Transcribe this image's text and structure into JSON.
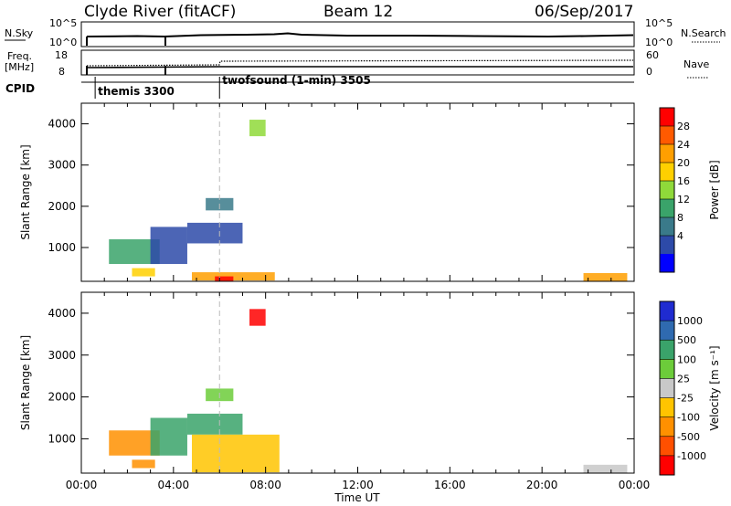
{
  "header": {
    "title": "Clyde River (fitACF)",
    "beam": "Beam 12",
    "date": "06/Sep/2017"
  },
  "status_panels": {
    "nsky_label": "N.Sky",
    "nsky_ticks": [
      "10^5",
      "10^0"
    ],
    "nsearch_label": "N.Search",
    "nsearch_ticks": [
      "10^5",
      "10^0"
    ],
    "freq_label": "Freq.",
    "freq_unit": "[MHz]",
    "freq_ticks": [
      "18",
      "8"
    ],
    "nave_label": "Nave",
    "nave_ticks": [
      "60",
      "0"
    ],
    "cpid_label": "CPID",
    "cpid_programs": [
      {
        "name": "themis 3300",
        "start_hour": 0.6
      },
      {
        "name": "twofsound (1-min) 3505",
        "start_hour": 6.0
      }
    ]
  },
  "colorbars": {
    "power": {
      "title": "Power [dB]",
      "ticks": [
        "28",
        "24",
        "20",
        "16",
        "12",
        "8",
        "4"
      ],
      "colors": [
        "#ff0000",
        "#ff5a00",
        "#ff9f00",
        "#ffd000",
        "#8fd93a",
        "#3aa36a",
        "#3a7a8a",
        "#2d4aa8",
        "#0000ff"
      ]
    },
    "velocity": {
      "title": "Velocity [m s⁻¹]",
      "ticks": [
        "1000",
        "500",
        "100",
        "25",
        "-25",
        "-100",
        "-500",
        "-1000"
      ],
      "colors": [
        "#1f2bd0",
        "#2f6ab0",
        "#3aa36a",
        "#6ccc3a",
        "#c8c8c8",
        "#ffc400",
        "#ff9000",
        "#ff5000",
        "#ff0000"
      ]
    }
  },
  "x_axis": {
    "label": "Time UT",
    "ticks": [
      "00:00",
      "04:00",
      "08:00",
      "12:00",
      "16:00",
      "20:00",
      "00:00"
    ]
  },
  "chart_data": [
    {
      "type": "heatmap",
      "panel": "power",
      "ylabel": "Slant Range [km]",
      "xlabel": "",
      "xlim_hours": [
        0,
        24
      ],
      "ylim_km": [
        180,
        4500
      ],
      "yticks": [
        "4000",
        "3000",
        "2000",
        "1000"
      ],
      "colorbar": "Power [dB]",
      "regions": [
        {
          "t0": 1.2,
          "t1": 3.4,
          "r0": 600,
          "r1": 1200,
          "level": 5
        },
        {
          "t0": 3.0,
          "t1": 4.6,
          "r0": 600,
          "r1": 1500,
          "level": 7
        },
        {
          "t0": 4.6,
          "t1": 7.0,
          "r0": 1100,
          "r1": 1600,
          "level": 7
        },
        {
          "t0": 5.4,
          "t1": 6.6,
          "r0": 1900,
          "r1": 2200,
          "level": 6
        },
        {
          "t0": 2.2,
          "t1": 3.2,
          "r0": 300,
          "r1": 500,
          "level": 3
        },
        {
          "t0": 4.8,
          "t1": 8.4,
          "r0": 200,
          "r1": 400,
          "level": 2
        },
        {
          "t0": 5.8,
          "t1": 6.6,
          "r0": 180,
          "r1": 300,
          "level": 0
        },
        {
          "t0": 7.3,
          "t1": 8.0,
          "r0": 3700,
          "r1": 4100,
          "level": 4
        },
        {
          "t0": 21.8,
          "t1": 23.7,
          "r0": 180,
          "r1": 380,
          "level": 2
        }
      ]
    },
    {
      "type": "heatmap",
      "panel": "velocity",
      "ylabel": "Slant Range [km]",
      "xlabel": "Time UT",
      "xlim_hours": [
        0,
        24
      ],
      "ylim_km": [
        180,
        4500
      ],
      "yticks": [
        "4000",
        "3000",
        "2000",
        "1000"
      ],
      "colorbar": "Velocity [m s⁻¹]",
      "regions": [
        {
          "t0": 1.2,
          "t1": 3.4,
          "r0": 600,
          "r1": 1200,
          "level": 6
        },
        {
          "t0": 3.0,
          "t1": 4.6,
          "r0": 600,
          "r1": 1500,
          "level": 2
        },
        {
          "t0": 4.6,
          "t1": 7.0,
          "r0": 1100,
          "r1": 1600,
          "level": 2
        },
        {
          "t0": 5.4,
          "t1": 6.6,
          "r0": 1900,
          "r1": 2200,
          "level": 3
        },
        {
          "t0": 2.2,
          "t1": 3.2,
          "r0": 300,
          "r1": 500,
          "level": 6
        },
        {
          "t0": 4.8,
          "t1": 8.6,
          "r0": 200,
          "r1": 1100,
          "level": 5
        },
        {
          "t0": 7.3,
          "t1": 8.0,
          "r0": 3700,
          "r1": 4100,
          "level": 8
        },
        {
          "t0": 21.8,
          "t1": 23.7,
          "r0": 180,
          "r1": 380,
          "level": 4
        }
      ]
    }
  ]
}
